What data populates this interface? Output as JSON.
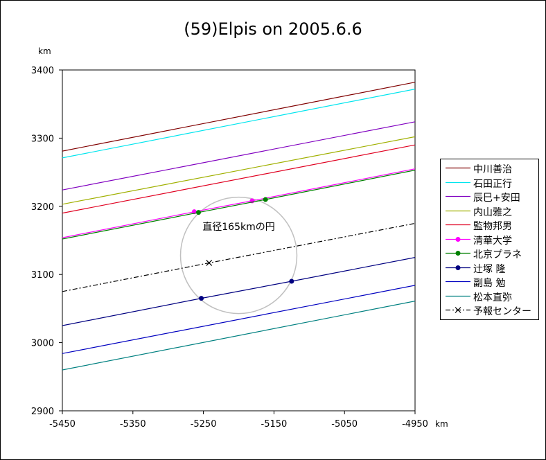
{
  "chart_data": {
    "type": "line",
    "title": "(59)Elpis on 2005.6.6",
    "xlabel": "km",
    "ylabel": "km",
    "xlim": [
      -5450,
      -4950
    ],
    "ylim": [
      2900,
      3400
    ],
    "x_ticks": [
      "-5450",
      "-5350",
      "-5250",
      "-5150",
      "-5050",
      "-4950"
    ],
    "y_ticks": [
      "3400",
      "3300",
      "3200",
      "3100",
      "3000",
      "2900"
    ],
    "grid": false,
    "legend_position": "right",
    "series": [
      {
        "name": "中川善治",
        "color": "#800000",
        "style": "solid",
        "marker": "none",
        "x": [
          -5450,
          -4950
        ],
        "y": [
          3281,
          3382
        ]
      },
      {
        "name": "石田正行",
        "color": "#00e5ee",
        "style": "solid",
        "marker": "none",
        "x": [
          -5450,
          -4950
        ],
        "y": [
          3271,
          3372
        ]
      },
      {
        "name": "辰巳+安田",
        "color": "#8000c0",
        "style": "solid",
        "marker": "none",
        "x": [
          -5450,
          -4950
        ],
        "y": [
          3224,
          3324
        ]
      },
      {
        "name": "内山雅之",
        "color": "#a0b000",
        "style": "solid",
        "marker": "none",
        "x": [
          -5450,
          -4950
        ],
        "y": [
          3203,
          3302
        ]
      },
      {
        "name": "監物邦男",
        "color": "#e00020",
        "style": "solid",
        "marker": "none",
        "x": [
          -5450,
          -4950
        ],
        "y": [
          3190,
          3290
        ]
      },
      {
        "name": "清華大学",
        "color": "#ff00ff",
        "style": "solid",
        "marker": "circle",
        "x": [
          -5450,
          -5263,
          -5181,
          -4950
        ],
        "y": [
          3154,
          3192,
          3208,
          3255
        ]
      },
      {
        "name": "北京プラネ",
        "color": "#008000",
        "style": "solid",
        "marker": "circle",
        "x": [
          -5450,
          -5257,
          -5162,
          -4950
        ],
        "y": [
          3152,
          3191,
          3210,
          3253
        ]
      },
      {
        "name": "辻塚 隆",
        "color": "#000080",
        "style": "solid",
        "marker": "circle",
        "x": [
          -5450,
          -5253,
          -5125,
          -4950
        ],
        "y": [
          3025,
          3065,
          3090,
          3125
        ]
      },
      {
        "name": "副島 勉",
        "color": "#0000c0",
        "style": "solid",
        "marker": "none",
        "x": [
          -5450,
          -4950
        ],
        "y": [
          2984,
          3084
        ]
      },
      {
        "name": "松本直弥",
        "color": "#008080",
        "style": "solid",
        "marker": "none",
        "x": [
          -5450,
          -4950
        ],
        "y": [
          2960,
          3061
        ]
      },
      {
        "name": "予報センター",
        "color": "#000000",
        "style": "dashdot",
        "marker": "x",
        "x": [
          -5450,
          -5242,
          -4950
        ],
        "y": [
          3075,
          3117,
          3175
        ]
      }
    ],
    "annotations": [
      {
        "text": "直径165kmの円",
        "x": -5200,
        "y": 3165
      }
    ],
    "circle": {
      "center_x": -5200,
      "center_y": 3128,
      "diameter": 165,
      "color": "#c0c0c0"
    }
  }
}
